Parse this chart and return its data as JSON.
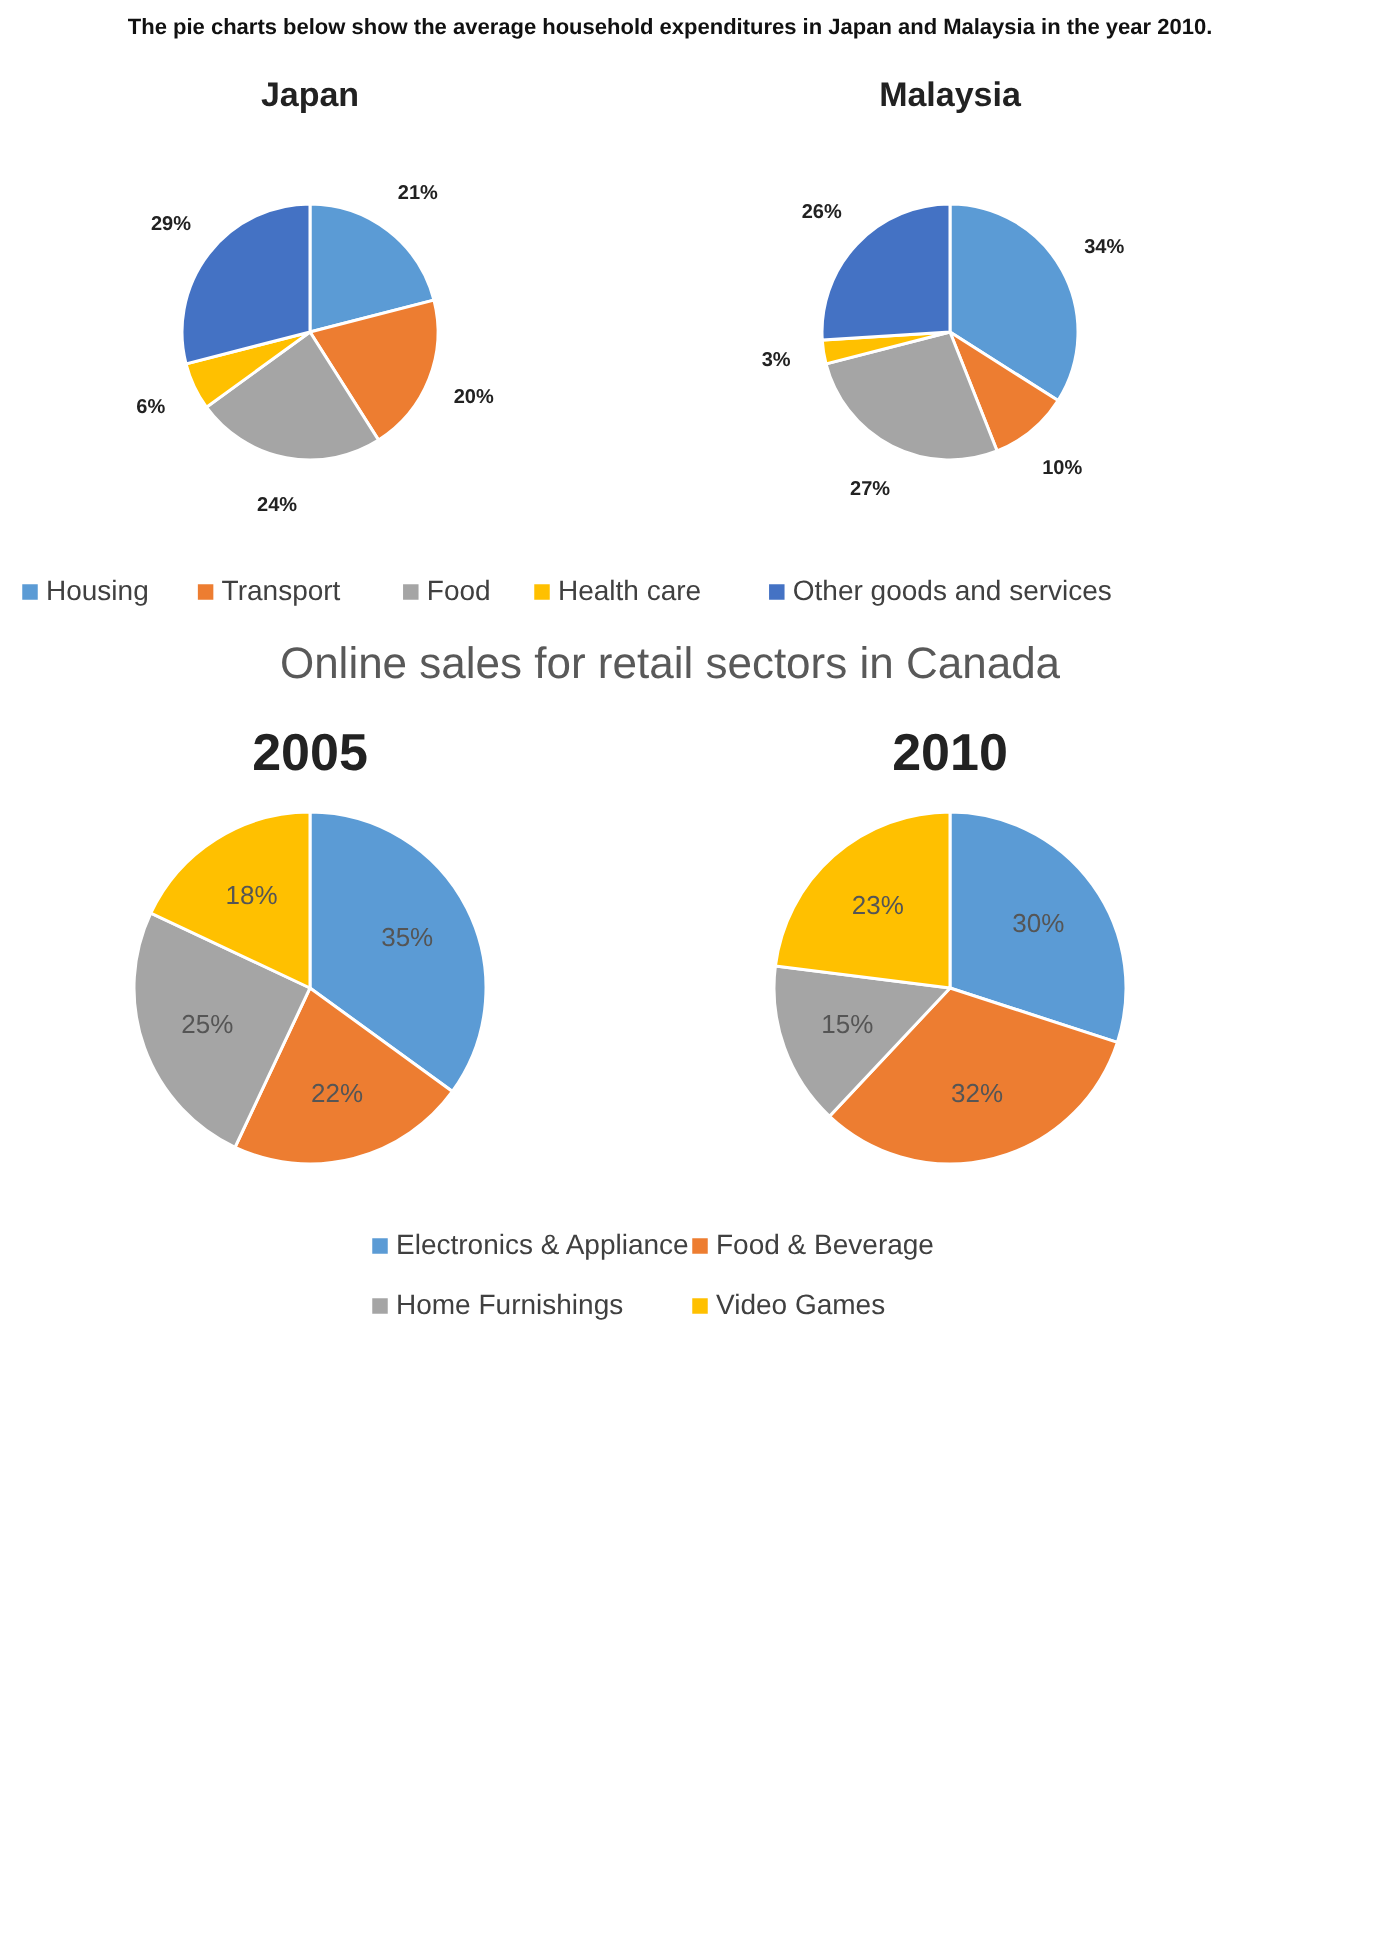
{
  "chart_data": [
    {
      "type": "pie",
      "title": "Japan",
      "annotations": [
        "The pie charts below show the average household expenditures in Japan and Malaysia in the year 2010."
      ],
      "categories": [
        "Housing",
        "Transport",
        "Food",
        "Health care",
        "Other goods and services"
      ],
      "values": [
        21,
        20,
        24,
        6,
        29
      ],
      "value_labels": [
        "21%",
        "20%",
        "24%",
        "6%",
        "29%"
      ],
      "colors": [
        "#5b9bd5",
        "#ed7d31",
        "#a5a5a5",
        "#ffc000",
        "#4472c4"
      ],
      "legend": "bottom"
    },
    {
      "type": "pie",
      "title": "Malaysia",
      "values": [
        34,
        10,
        27,
        3,
        26
      ],
      "value_labels": [
        "34%",
        "10%",
        "27%",
        "3%",
        "26%"
      ],
      "colors": [
        "#5b9bd5",
        "#ed7d31",
        "#a5a5a5",
        "#ffc000",
        "#4472c4"
      ]
    },
    {
      "type": "pie",
      "title": "2005",
      "annotations": [
        "Online sales for retail sectors in Canada"
      ],
      "categories": [
        "Electronics & Appliance",
        "Food & Beverage",
        "Home Furnishings",
        "Video Games"
      ],
      "values": [
        35,
        22,
        25,
        18
      ],
      "value_labels": [
        "35%",
        "22%",
        "25%",
        "18%"
      ],
      "colors": [
        "#5b9bd5",
        "#ed7d31",
        "#a5a5a5",
        "#ffc000"
      ],
      "legend": "bottom"
    },
    {
      "type": "pie",
      "title": "2010",
      "values": [
        30,
        32,
        15,
        23
      ],
      "value_labels": [
        "30%",
        "32%",
        "15%",
        "23%"
      ],
      "colors": [
        "#5b9bd5",
        "#ed7d31",
        "#a5a5a5",
        "#ffc000"
      ]
    }
  ]
}
